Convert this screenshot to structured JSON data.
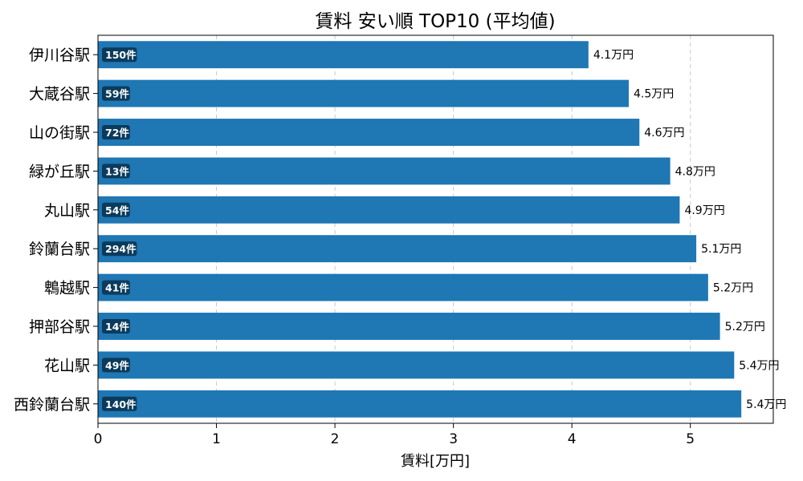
{
  "chart_data": {
    "type": "bar",
    "orientation": "horizontal",
    "title": "賃料 安い順 TOP10 (平均値)",
    "xlabel": "賃料[万円]",
    "ylabel": "",
    "xlim": [
      0,
      5.7
    ],
    "x_ticks": [
      0,
      1,
      2,
      3,
      4,
      5
    ],
    "grid": "vertical-dashed",
    "bar_color": "#1f77b4",
    "badge_color": "#0b3b5c",
    "value_suffix": "万円",
    "count_suffix": "件",
    "categories": [
      "伊川谷駅",
      "大蔵谷駅",
      "山の街駅",
      "緑が丘駅",
      "丸山駅",
      "鈴蘭台駅",
      "鵯越駅",
      "押部谷駅",
      "花山駅",
      "西鈴蘭台駅"
    ],
    "values": [
      4.14,
      4.48,
      4.57,
      4.83,
      4.91,
      5.05,
      5.15,
      5.25,
      5.37,
      5.43
    ],
    "value_labels": [
      "4.1万円",
      "4.5万円",
      "4.6万円",
      "4.8万円",
      "4.9万円",
      "5.1万円",
      "5.2万円",
      "5.2万円",
      "5.4万円",
      "5.4万円"
    ],
    "counts": [
      "150件",
      "59件",
      "72件",
      "13件",
      "54件",
      "294件",
      "41件",
      "14件",
      "49件",
      "140件"
    ]
  }
}
